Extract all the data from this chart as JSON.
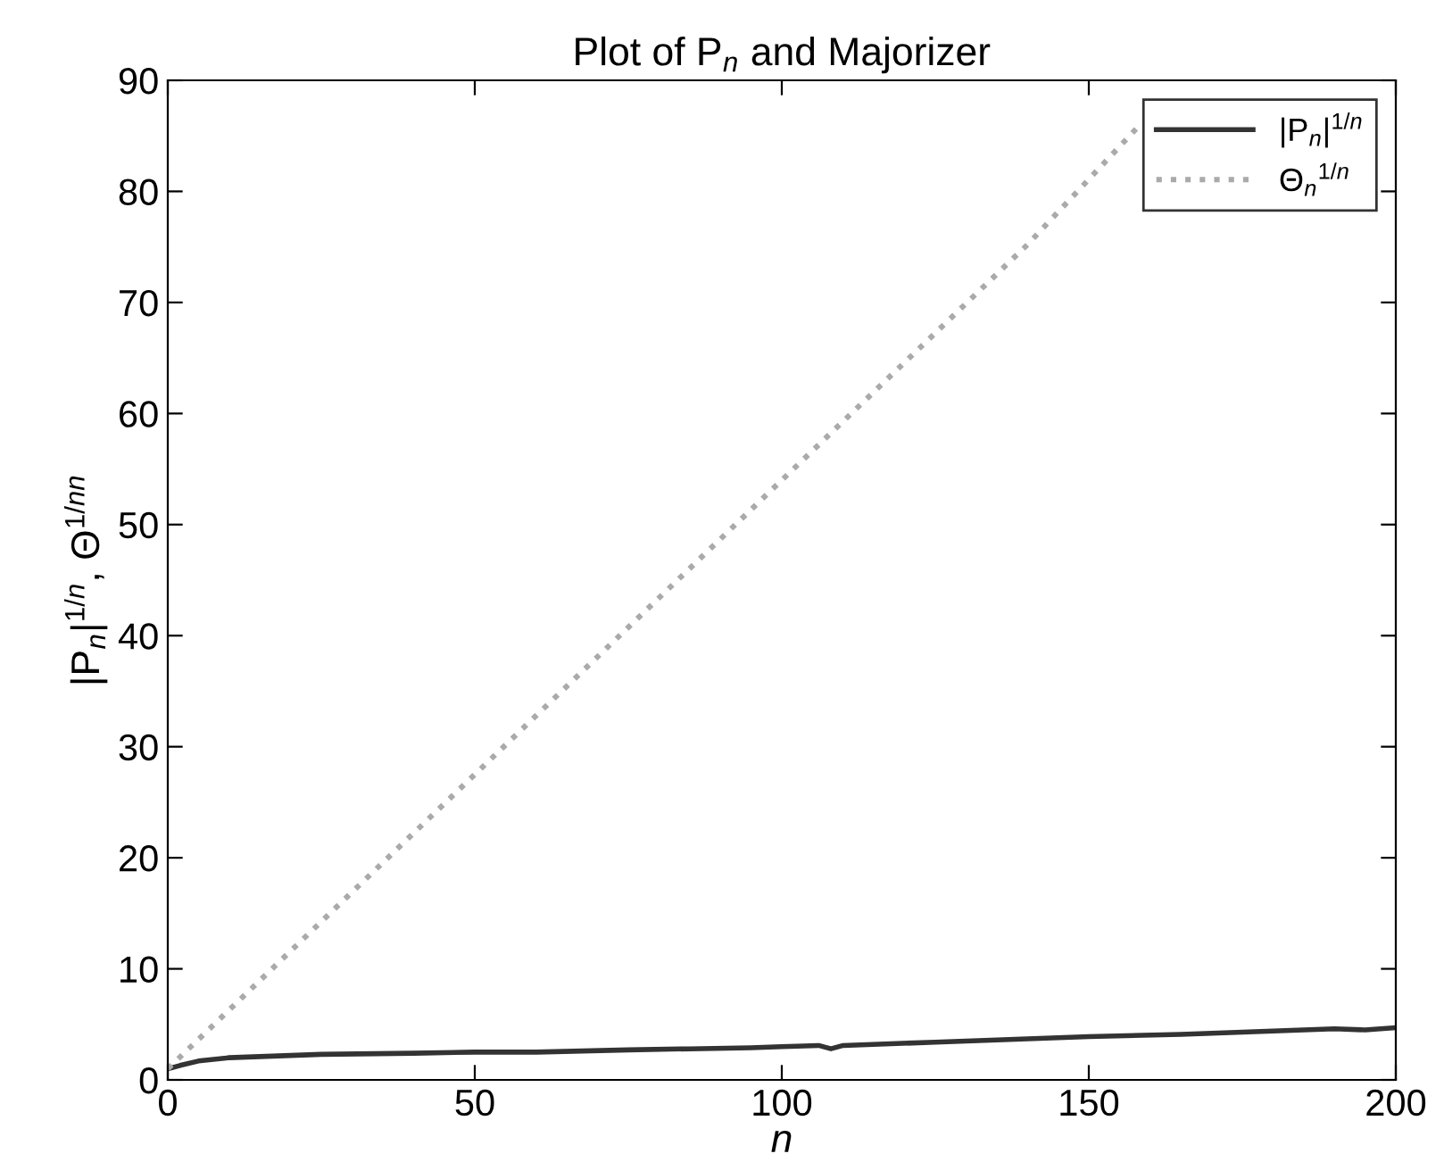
{
  "chart_data": {
    "type": "line",
    "title": "Plot of P$_{n}$ and Majorizer",
    "xlabel": "n",
    "ylabel": "|P$_{n}$|$^{1/n}$, Θ$^{1/nn}$",
    "xlim": [
      0,
      200
    ],
    "ylim": [
      0,
      90
    ],
    "xticks": [
      0,
      50,
      100,
      150,
      200
    ],
    "yticks": [
      0,
      10,
      20,
      30,
      40,
      50,
      60,
      70,
      80,
      90
    ],
    "grid": false,
    "legend": "top right",
    "marker": "none",
    "series": [
      {
        "name": "|P$_{n}$|$^{1/n}$",
        "color": "#333333",
        "line_style": "solid",
        "x": [
          0,
          2,
          5,
          10,
          15,
          25,
          40,
          50,
          60,
          75,
          85,
          95,
          100,
          106,
          108,
          110,
          125,
          150,
          165,
          175,
          190,
          195,
          200
        ],
        "values": [
          1,
          1.3,
          1.7,
          2,
          2.1,
          2.3,
          2.4,
          2.5,
          2.5,
          2.7,
          2.8,
          2.9,
          3,
          3.1,
          2.8,
          3.1,
          3.4,
          3.9,
          4.1,
          4.3,
          4.6,
          4.5,
          4.7
        ]
      },
      {
        "name": "Θ$_{n}$$^{1/n}$",
        "color": "#aaaaaa",
        "line_style": "dotted",
        "x": [
          0,
          20,
          40,
          60,
          80,
          100,
          120,
          140,
          158
        ],
        "values": [
          1,
          11.6,
          22.2,
          32.8,
          43.4,
          54,
          64.6,
          75.2,
          85.8
        ]
      }
    ]
  }
}
